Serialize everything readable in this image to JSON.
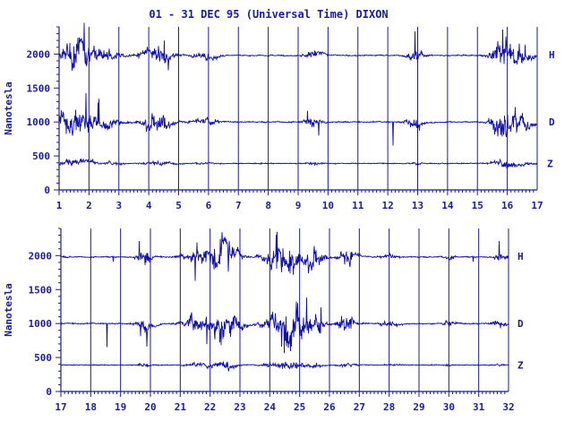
{
  "title": "01 - 31 DEC 95 (Universal Time) DIXON",
  "colors": {
    "plot": "#1010a8",
    "text": "#1a1a9c",
    "axis": "#1a1a9c",
    "background": "#ffffff"
  },
  "chart_data": [
    {
      "type": "line",
      "panel": "top",
      "x_range": [
        1,
        17
      ],
      "x_ticks": [
        "1",
        "2",
        "3",
        "4",
        "5",
        "6",
        "7",
        "8",
        "9",
        "10",
        "11",
        "12",
        "13",
        "14",
        "15",
        "16",
        "17"
      ],
      "ylabel": "Nanotesla",
      "ylim": [
        0,
        2400
      ],
      "y_ticks": [
        "0",
        "500",
        "1000",
        "1500",
        "2000"
      ],
      "vertical_day_lines": true,
      "series": [
        {
          "name": "H",
          "baseline": 1980
        },
        {
          "name": "D",
          "baseline": 1000
        },
        {
          "name": "Z",
          "baseline": 390
        }
      ]
    },
    {
      "type": "line",
      "panel": "bottom",
      "x_range": [
        17,
        32
      ],
      "x_ticks": [
        "17",
        "18",
        "19",
        "20",
        "21",
        "22",
        "23",
        "24",
        "25",
        "26",
        "27",
        "28",
        "29",
        "30",
        "31",
        "32"
      ],
      "ylabel": "Nanotesla",
      "ylim": [
        0,
        2400
      ],
      "y_ticks": [
        "0",
        "500",
        "1000",
        "1500",
        "2000"
      ],
      "vertical_day_lines": true,
      "series": [
        {
          "name": "H",
          "baseline": 1980
        },
        {
          "name": "D",
          "baseline": 1000
        },
        {
          "name": "Z",
          "baseline": 390
        }
      ]
    }
  ]
}
